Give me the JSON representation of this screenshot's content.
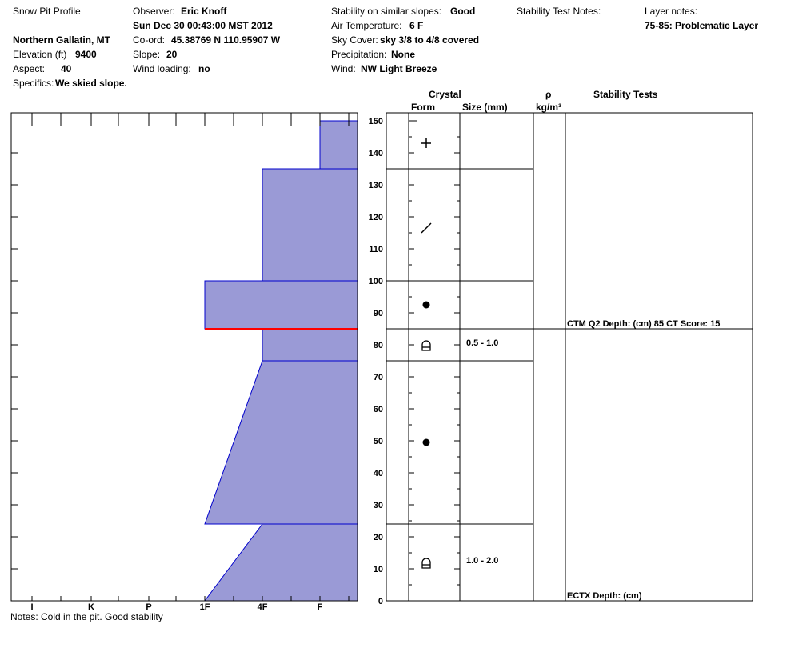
{
  "header": {
    "title": "Snow Pit Profile",
    "location": "Northern Gallatin, MT",
    "elevation_label": "Elevation (ft)",
    "elevation_value": "9400",
    "aspect_label": "Aspect:",
    "aspect_value": "40",
    "specifics_label": "Specifics:",
    "specifics_value": "We skied slope.",
    "observer_label": "Observer:",
    "observer_value": "Eric Knoff",
    "date": "Sun Dec 30 00:43:00 MST 2012",
    "coord_label": "Co-ord:",
    "coord_value": "45.38769 N 110.95907 W",
    "slope_label": "Slope:",
    "slope_value": "20",
    "wind_loading_label": "Wind loading:",
    "wind_loading_value": "no",
    "stability_label": "Stability on similar slopes:",
    "stability_value": "Good",
    "air_temp_label": "Air Temperature:",
    "air_temp_value": "6 F",
    "sky_label": "Sky Cover:",
    "sky_value": "sky 3/8 to 4/8 covered",
    "precip_label": "Precipitation:",
    "precip_value": "None",
    "wind_label": "Wind:",
    "wind_value": "NW Light Breeze",
    "stability_test_notes_label": "Stability Test Notes:",
    "layer_notes_label": "Layer notes:",
    "layer_notes_value": "75-85: Problematic Layer"
  },
  "table_headers": {
    "crystal": "Crystal",
    "form": "Form",
    "size": "Size (mm)",
    "rho": "ρ",
    "density_unit": "kg/m³",
    "stability_tests": "Stability Tests"
  },
  "notes": "Notes:  Cold in the pit.  Good stability",
  "chart_data": {
    "type": "area",
    "title": "Snow Pit Profile",
    "hardness_axis": {
      "labels": [
        "I",
        "K",
        "P",
        "1F",
        "4F",
        "F"
      ],
      "direction": "hardness increases to the left"
    },
    "height_axis": {
      "unit": "cm",
      "range": [
        0,
        150
      ],
      "ticks": [
        0,
        10,
        20,
        30,
        40,
        50,
        60,
        70,
        80,
        90,
        100,
        110,
        120,
        130,
        140,
        150
      ]
    },
    "fill_color": "#9a9ad6",
    "outline_color": "#0000cc",
    "problem_layer_color": "#ff0000",
    "hardness_profile": [
      {
        "bottom": 135,
        "top": 150,
        "hardness_bottom": "F",
        "hardness_top": "F"
      },
      {
        "bottom": 100,
        "top": 135,
        "hardness_bottom": "4F",
        "hardness_top": "4F"
      },
      {
        "bottom": 85,
        "top": 100,
        "hardness_bottom": "1F",
        "hardness_top": "1F"
      },
      {
        "bottom": 75,
        "top": 85,
        "hardness_bottom": "4F",
        "hardness_top": "4F"
      },
      {
        "bottom": 24,
        "top": 75,
        "hardness_bottom": "1F",
        "hardness_top": "4F"
      },
      {
        "bottom": 0,
        "top": 24,
        "hardness_bottom": "1F",
        "hardness_top": "4F"
      }
    ],
    "problem_layer_height": 85,
    "layer_boundaries": [
      135,
      100,
      85,
      75,
      24
    ],
    "crystal_layers": [
      {
        "bottom": 135,
        "top": 150,
        "form": "precipitation-particles",
        "form_symbol": "+",
        "size": ""
      },
      {
        "bottom": 100,
        "top": 135,
        "form": "decomposing-fragmented",
        "form_symbol": "/",
        "size": ""
      },
      {
        "bottom": 85,
        "top": 100,
        "form": "rounded-grains",
        "form_symbol": "●",
        "size": ""
      },
      {
        "bottom": 75,
        "top": 85,
        "form": "depth-hoar",
        "form_symbol": "hoar",
        "size": "0.5 - 1.0"
      },
      {
        "bottom": 24,
        "top": 75,
        "form": "rounded-grains",
        "form_symbol": "●",
        "size": ""
      },
      {
        "bottom": 0,
        "top": 24,
        "form": "depth-hoar",
        "form_symbol": "hoar",
        "size": "1.0 - 2.0"
      }
    ],
    "stability_tests": [
      {
        "text": "CTM Q2 Depth: (cm) 85 CT Score: 15",
        "height": 85
      },
      {
        "text": "ECTX   Depth: (cm)",
        "height": 0
      }
    ]
  }
}
